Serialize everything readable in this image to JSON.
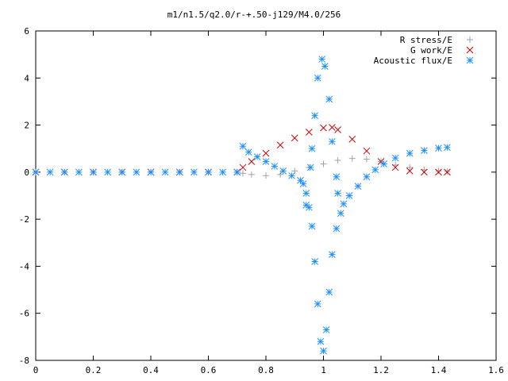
{
  "chart_data": {
    "type": "scatter",
    "title": "m1/n1.5/q2.0/r-+.50-j129/M4.0/256",
    "xlabel": "",
    "ylabel": "",
    "xlim": [
      0,
      1.6
    ],
    "ylim": [
      -8,
      6
    ],
    "x_ticks": [
      "0",
      "0.2",
      "0.4",
      "0.6",
      "0.8",
      "1",
      "1.2",
      "1.4",
      "1.6"
    ],
    "y_ticks": [
      "6",
      "4",
      "2",
      "0",
      "-2",
      "-4",
      "-6",
      "-8"
    ],
    "legend_position": "top-right",
    "series": [
      {
        "name": "R stress/E",
        "marker": "plus",
        "color": "#a0a0a0",
        "points": [
          [
            0.0,
            0.0
          ],
          [
            0.1,
            0.0
          ],
          [
            0.2,
            0.0
          ],
          [
            0.3,
            0.0
          ],
          [
            0.4,
            0.0
          ],
          [
            0.5,
            0.0
          ],
          [
            0.6,
            0.0
          ],
          [
            0.7,
            0.0
          ],
          [
            0.72,
            -0.05
          ],
          [
            0.75,
            -0.1
          ],
          [
            0.8,
            -0.15
          ],
          [
            0.85,
            -0.1
          ],
          [
            0.9,
            0.05
          ],
          [
            0.95,
            0.2
          ],
          [
            1.0,
            0.35
          ],
          [
            1.05,
            0.5
          ],
          [
            1.1,
            0.58
          ],
          [
            1.15,
            0.55
          ],
          [
            1.2,
            0.45
          ],
          [
            1.25,
            0.3
          ],
          [
            1.3,
            0.2
          ],
          [
            1.35,
            0.1
          ],
          [
            1.4,
            0.05
          ],
          [
            1.43,
            0.03
          ]
        ]
      },
      {
        "name": "G work/E",
        "marker": "cross",
        "color": "#cc0000",
        "points": [
          [
            0.0,
            0.0
          ],
          [
            0.1,
            0.0
          ],
          [
            0.2,
            0.0
          ],
          [
            0.3,
            0.0
          ],
          [
            0.4,
            0.0
          ],
          [
            0.5,
            0.0
          ],
          [
            0.6,
            0.0
          ],
          [
            0.7,
            0.0
          ],
          [
            0.72,
            0.2
          ],
          [
            0.75,
            0.45
          ],
          [
            0.8,
            0.8
          ],
          [
            0.85,
            1.15
          ],
          [
            0.9,
            1.45
          ],
          [
            0.95,
            1.7
          ],
          [
            1.0,
            1.88
          ],
          [
            1.03,
            1.9
          ],
          [
            1.05,
            1.8
          ],
          [
            1.1,
            1.4
          ],
          [
            1.15,
            0.9
          ],
          [
            1.2,
            0.45
          ],
          [
            1.25,
            0.2
          ],
          [
            1.3,
            0.05
          ],
          [
            1.35,
            0.0
          ],
          [
            1.4,
            0.0
          ],
          [
            1.43,
            0.0
          ]
        ]
      },
      {
        "name": "Acoustic flux/E",
        "marker": "star",
        "color": "#1e90ff",
        "points": [
          [
            0.0,
            0.0
          ],
          [
            0.05,
            0.0
          ],
          [
            0.1,
            0.0
          ],
          [
            0.15,
            0.0
          ],
          [
            0.2,
            0.0
          ],
          [
            0.25,
            0.0
          ],
          [
            0.3,
            0.0
          ],
          [
            0.35,
            0.0
          ],
          [
            0.4,
            0.0
          ],
          [
            0.45,
            0.0
          ],
          [
            0.5,
            0.0
          ],
          [
            0.55,
            0.0
          ],
          [
            0.6,
            0.0
          ],
          [
            0.65,
            0.0
          ],
          [
            0.7,
            0.0
          ],
          [
            0.72,
            1.1
          ],
          [
            0.74,
            0.85
          ],
          [
            0.77,
            0.65
          ],
          [
            0.8,
            0.45
          ],
          [
            0.83,
            0.25
          ],
          [
            0.86,
            0.05
          ],
          [
            0.89,
            -0.15
          ],
          [
            0.92,
            -0.35
          ],
          [
            0.93,
            -0.5
          ],
          [
            0.94,
            -0.9
          ],
          [
            0.95,
            -1.5
          ],
          [
            0.96,
            -2.3
          ],
          [
            0.97,
            -3.8
          ],
          [
            0.98,
            -5.6
          ],
          [
            0.99,
            -7.2
          ],
          [
            1.0,
            -7.6
          ],
          [
            1.01,
            -6.7
          ],
          [
            1.02,
            -5.1
          ],
          [
            1.03,
            -3.5
          ],
          [
            1.045,
            -2.4
          ],
          [
            1.06,
            -1.75
          ],
          [
            1.07,
            -1.35
          ],
          [
            1.09,
            -1.0
          ],
          [
            1.12,
            -0.6
          ],
          [
            1.15,
            -0.2
          ],
          [
            1.18,
            0.1
          ],
          [
            1.21,
            0.35
          ],
          [
            1.25,
            0.6
          ],
          [
            1.3,
            0.8
          ],
          [
            1.35,
            0.92
          ],
          [
            1.4,
            1.02
          ],
          [
            1.43,
            1.05
          ],
          [
            0.94,
            -1.4
          ],
          [
            0.955,
            0.2
          ],
          [
            0.96,
            1.0
          ],
          [
            0.97,
            2.4
          ],
          [
            0.98,
            4.0
          ],
          [
            0.995,
            4.8
          ],
          [
            1.005,
            4.5
          ],
          [
            1.02,
            3.1
          ],
          [
            1.03,
            1.3
          ],
          [
            1.045,
            -0.2
          ],
          [
            1.05,
            -0.9
          ]
        ]
      }
    ]
  }
}
